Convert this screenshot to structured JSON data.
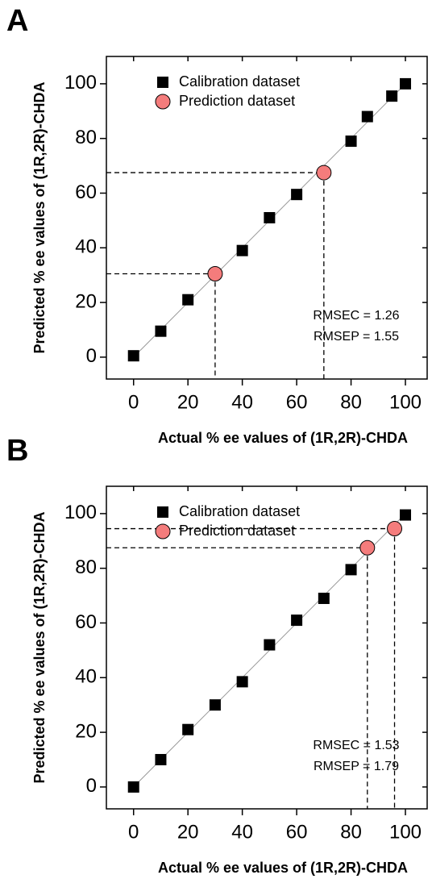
{
  "chart_data": [
    {
      "type": "scatter",
      "panel": "A",
      "x_label": "Actual % ee values of (1R,2R)-CHDA",
      "y_label": "Predicted % ee values of (1R,2R)-CHDA",
      "xlim": [
        -10,
        108
      ],
      "ylim": [
        -8,
        110
      ],
      "xticks": [
        0,
        20,
        40,
        60,
        80,
        100
      ],
      "yticks": [
        0,
        20,
        40,
        60,
        80,
        100
      ],
      "legend": "upper left",
      "annotations": [
        "RMSEC = 1.26",
        "RMSEP = 1.55"
      ],
      "series": [
        {
          "name": "Calibration dataset",
          "color": "#000000",
          "marker": "square",
          "x": [
            0,
            10,
            20,
            40,
            50,
            60,
            80,
            86,
            95,
            100
          ],
          "values": [
            0.5,
            9.5,
            21,
            39,
            51,
            59.5,
            79,
            88,
            95.5,
            100
          ]
        },
        {
          "name": "Prediction dataset",
          "color": "#f47c7c",
          "marker": "circle",
          "x": [
            30,
            70
          ],
          "values": [
            30.5,
            67.5
          ]
        }
      ]
    },
    {
      "type": "scatter",
      "panel": "B",
      "x_label": "Actual % ee values of (1R,2R)-CHDA",
      "y_label": "Predicted % ee values of (1R,2R)-CHDA",
      "xlim": [
        -10,
        108
      ],
      "ylim": [
        -8,
        110
      ],
      "xticks": [
        0,
        20,
        40,
        60,
        80,
        100
      ],
      "yticks": [
        0,
        20,
        40,
        60,
        80,
        100
      ],
      "legend": "upper left",
      "annotations": [
        "RMSEC = 1.53",
        "RMSEP = 1.79"
      ],
      "series": [
        {
          "name": "Calibration dataset",
          "color": "#000000",
          "marker": "square",
          "x": [
            0,
            10,
            20,
            30,
            40,
            50,
            60,
            70,
            80,
            100
          ],
          "values": [
            0,
            10,
            21,
            30,
            38.5,
            52,
            61,
            69,
            79.5,
            99.5
          ]
        },
        {
          "name": "Prediction dataset",
          "color": "#f47c7c",
          "marker": "circle",
          "x": [
            86,
            96
          ],
          "values": [
            87.5,
            94.5
          ]
        }
      ]
    }
  ]
}
